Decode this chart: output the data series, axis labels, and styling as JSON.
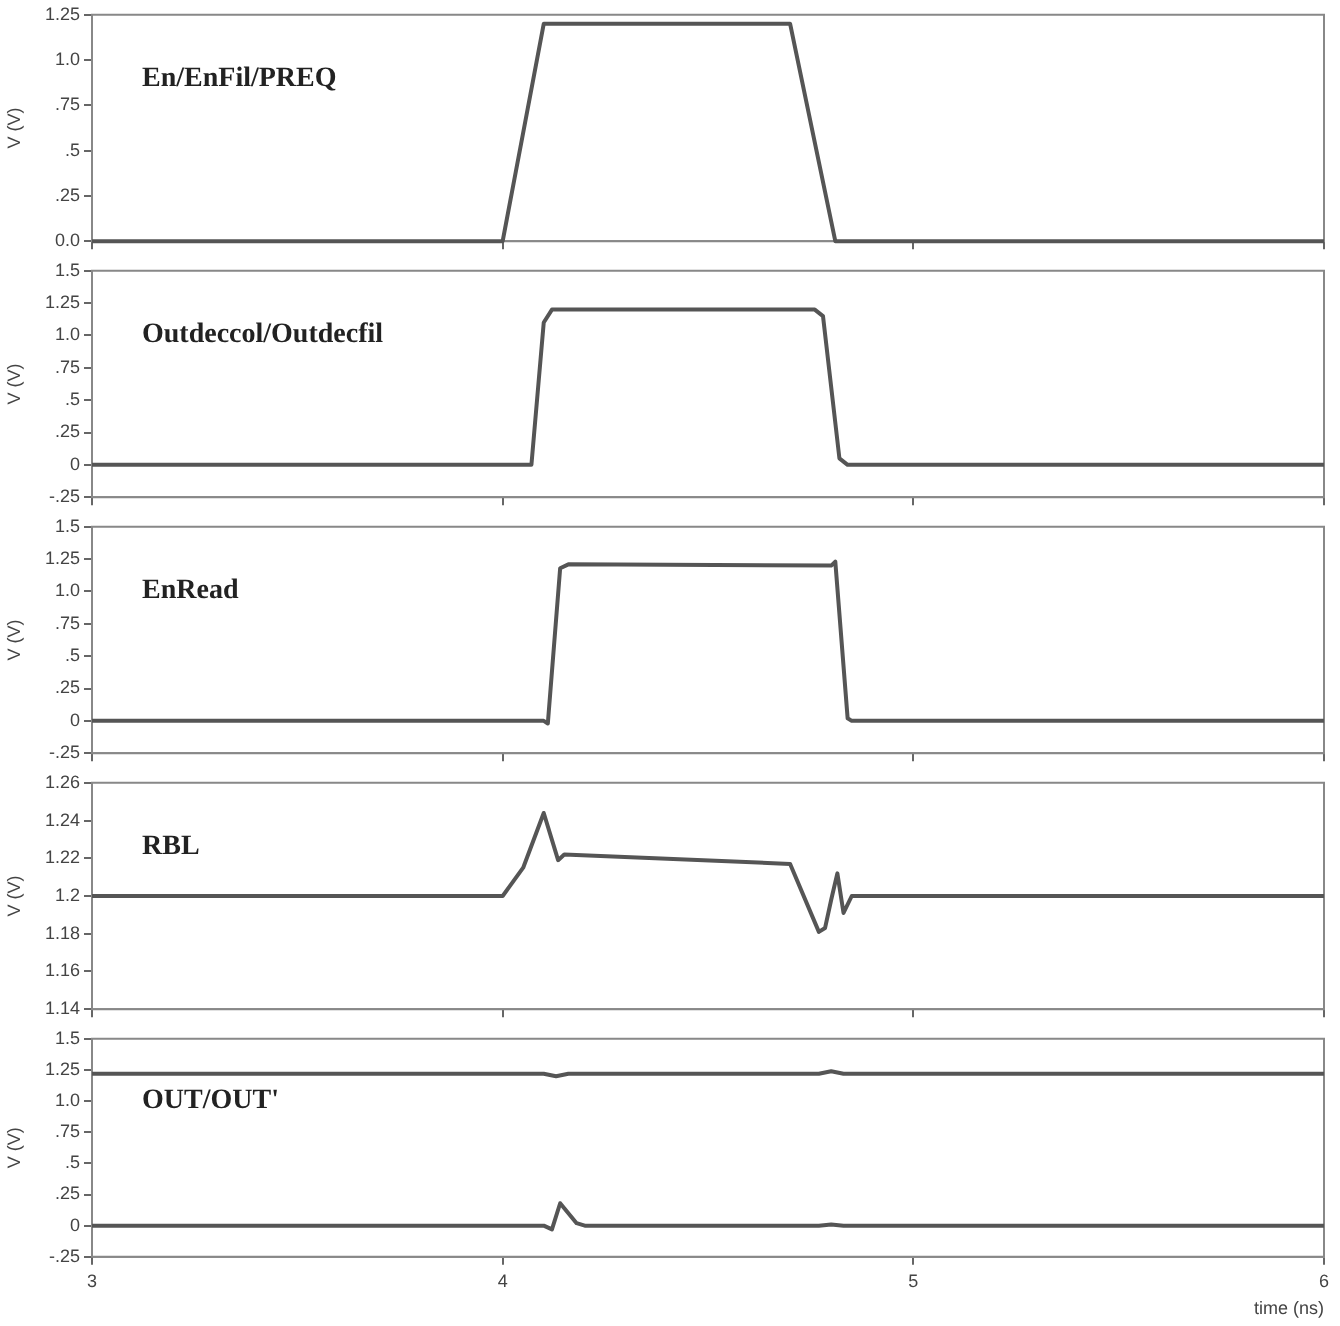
{
  "chart_data": [
    {
      "type": "line",
      "title": "En/EnFil/PREQ",
      "ylabel": "V (V)",
      "tick_labels": "y",
      "xlim": [
        3,
        6
      ],
      "xticks": [
        3,
        4,
        5,
        6
      ],
      "ylim": [
        0,
        1.25
      ],
      "yticks": [
        {
          "value": 0,
          "label": "0.0"
        },
        {
          "value": 0.25,
          "label": ".25"
        },
        {
          "value": 0.5,
          "label": ".5"
        },
        {
          "value": 0.75,
          "label": ".75"
        },
        {
          "value": 1,
          "label": "1.0"
        },
        1.25
      ],
      "grid": false,
      "legend": false,
      "marker": "none",
      "line_style": "solid",
      "series": [
        {
          "color": "#555555",
          "x": [
            3,
            4.0,
            4.1,
            4.7,
            4.81,
            6
          ],
          "values": [
            0,
            0,
            1.2,
            1.2,
            0,
            0
          ]
        }
      ]
    },
    {
      "type": "line",
      "title": "Outdeccol/Outdecfil",
      "ylabel": "V (V)",
      "tick_labels": "y",
      "xlim": [
        3,
        6
      ],
      "xticks": [
        3,
        4,
        5,
        6
      ],
      "ylim": [
        -0.25,
        1.5
      ],
      "yticks": [
        {
          "value": -0.25,
          "label": "-.25"
        },
        0,
        {
          "value": 0.25,
          "label": ".25"
        },
        {
          "value": 0.5,
          "label": ".5"
        },
        {
          "value": 0.75,
          "label": ".75"
        },
        {
          "value": 1,
          "label": "1.0"
        },
        1.25,
        1.5
      ],
      "grid": false,
      "legend": false,
      "marker": "none",
      "line_style": "solid",
      "series": [
        {
          "color": "#555555",
          "x": [
            3,
            4.07,
            4.1,
            4.12,
            4.76,
            4.78,
            4.82,
            4.84,
            6
          ],
          "values": [
            0,
            0,
            1.1,
            1.2,
            1.2,
            1.15,
            0.05,
            0,
            0
          ]
        }
      ]
    },
    {
      "type": "line",
      "title": "EnRead",
      "ylabel": "V (V)",
      "tick_labels": "y",
      "xlim": [
        3,
        6
      ],
      "xticks": [
        3,
        4,
        5,
        6
      ],
      "ylim": [
        -0.25,
        1.5
      ],
      "yticks": [
        {
          "value": -0.25,
          "label": "-.25"
        },
        0,
        {
          "value": 0.25,
          "label": ".25"
        },
        {
          "value": 0.5,
          "label": ".5"
        },
        {
          "value": 0.75,
          "label": ".75"
        },
        {
          "value": 1,
          "label": "1.0"
        },
        1.25,
        1.5
      ],
      "grid": false,
      "legend": false,
      "marker": "none",
      "line_style": "solid",
      "series": [
        {
          "color": "#555555",
          "x": [
            3,
            4.1,
            4.11,
            4.14,
            4.16,
            4.8,
            4.81,
            4.84,
            4.85,
            6
          ],
          "values": [
            0,
            0,
            -0.02,
            1.18,
            1.21,
            1.2,
            1.23,
            0.02,
            0,
            0
          ]
        }
      ]
    },
    {
      "type": "line",
      "title": "RBL",
      "ylabel": "V (V)",
      "tick_labels": "y",
      "xlim": [
        3,
        6
      ],
      "xticks": [
        3,
        4,
        5,
        6
      ],
      "ylim": [
        1.14,
        1.26
      ],
      "yticks": [
        1.14,
        1.16,
        1.18,
        1.2,
        1.22,
        1.24,
        1.26
      ],
      "grid": false,
      "legend": false,
      "marker": "none",
      "line_style": "solid",
      "series": [
        {
          "color": "#555555",
          "x": [
            3,
            4.0,
            4.05,
            4.1,
            4.135,
            4.15,
            4.7,
            4.77,
            4.785,
            4.8,
            4.815,
            4.83,
            4.85,
            6
          ],
          "values": [
            1.2,
            1.2,
            1.215,
            1.244,
            1.219,
            1.222,
            1.217,
            1.181,
            1.183,
            1.198,
            1.212,
            1.191,
            1.2,
            1.2
          ]
        }
      ]
    },
    {
      "type": "line",
      "title": "OUT/OUT'",
      "ylabel": "V (V)",
      "xlabel": "time (ns)",
      "xlim": [
        3,
        6
      ],
      "xticks": [
        3,
        4,
        5,
        6
      ],
      "ylim": [
        -0.25,
        1.5
      ],
      "yticks": [
        {
          "value": -0.25,
          "label": "-.25"
        },
        0,
        {
          "value": 0.25,
          "label": ".25"
        },
        {
          "value": 0.5,
          "label": ".5"
        },
        {
          "value": 0.75,
          "label": ".75"
        },
        {
          "value": 1,
          "label": "1.0"
        },
        1.25,
        1.5
      ],
      "grid": false,
      "legend": false,
      "marker": "none",
      "line_style": "solid",
      "series": [
        {
          "color": "#555555",
          "x": [
            3,
            4.1,
            4.13,
            4.16,
            4.77,
            4.8,
            4.83,
            6
          ],
          "values": [
            1.22,
            1.22,
            1.2,
            1.22,
            1.22,
            1.24,
            1.22,
            1.22
          ]
        },
        {
          "color": "#555555",
          "x": [
            3,
            4.1,
            4.12,
            4.14,
            4.18,
            4.2,
            4.77,
            4.8,
            4.83,
            6
          ],
          "values": [
            0,
            0,
            -0.03,
            0.18,
            0.02,
            0,
            0,
            0.01,
            0,
            0
          ]
        }
      ]
    }
  ]
}
